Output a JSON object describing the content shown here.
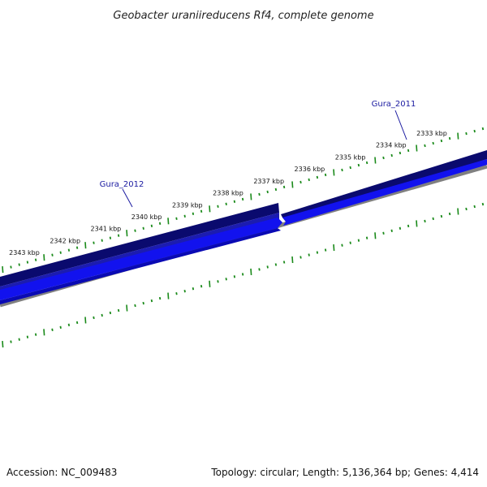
{
  "title": "Geobacter uraniireducens Rf4, complete genome",
  "footer": {
    "accession": "Accession: NC_009483",
    "summary": "Topology: circular; Length: 5,136,364 bp; Genes: 4,414"
  },
  "colors": {
    "tick": "#1a8a1a",
    "gene_dark": "#0a0a6e",
    "gene_bright": "#1212ee",
    "backbone": "#808080",
    "gene_label": "#1a1aa0"
  },
  "scale": {
    "labels": [
      "2333 kbp",
      "2334 kbp",
      "2335 kbp",
      "2336 kbp",
      "2337 kbp",
      "2338 kbp",
      "2339 kbp",
      "2340 kbp",
      "2341 kbp",
      "2342 kbp",
      "2343 kbp"
    ]
  },
  "genes": [
    {
      "name": "Gura_2011",
      "strand": "forward"
    },
    {
      "name": "Gura_2012",
      "strand": "reverse"
    }
  ]
}
